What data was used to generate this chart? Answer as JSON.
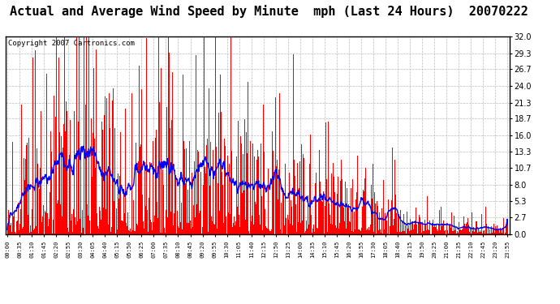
{
  "title": "Actual and Average Wind Speed by Minute  mph (Last 24 Hours)  20070222",
  "copyright": "Copyright 2007 Cartronics.com",
  "yticks": [
    0.0,
    2.7,
    5.3,
    8.0,
    10.7,
    13.3,
    16.0,
    18.7,
    21.3,
    24.0,
    26.7,
    29.3,
    32.0
  ],
  "ymax": 32.0,
  "ymin": 0.0,
  "bar_color": "#FF0000",
  "line_color": "#0000FF",
  "bg_color": "#FFFFFF",
  "grid_color": "#BBBBBB",
  "title_fontsize": 11,
  "copyright_fontsize": 6.5,
  "xtick_labels": [
    "00:00",
    "00:35",
    "01:10",
    "01:45",
    "02:20",
    "02:55",
    "03:30",
    "04:05",
    "04:40",
    "05:15",
    "05:50",
    "06:25",
    "07:00",
    "07:35",
    "08:10",
    "08:45",
    "09:20",
    "09:55",
    "10:30",
    "11:05",
    "11:40",
    "12:15",
    "12:50",
    "13:25",
    "14:00",
    "14:35",
    "15:10",
    "15:45",
    "16:20",
    "16:55",
    "17:30",
    "18:05",
    "18:40",
    "19:15",
    "19:50",
    "20:25",
    "21:00",
    "21:35",
    "22:10",
    "22:45",
    "23:20",
    "23:55"
  ],
  "n_minutes": 1440
}
